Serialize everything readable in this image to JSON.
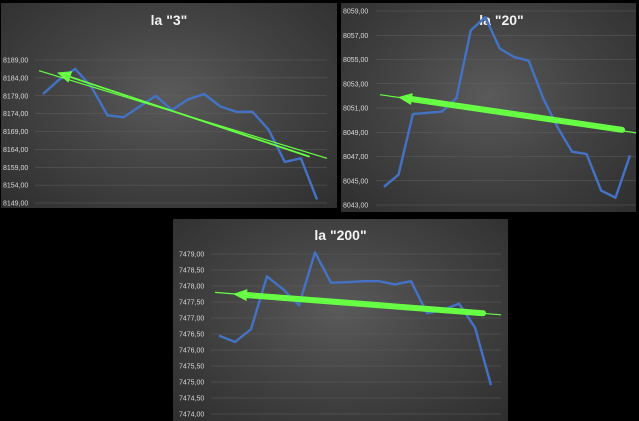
{
  "chart_data": [
    {
      "type": "line",
      "title": "la \"3\"",
      "ylim": [
        8149,
        8189
      ],
      "yticks": [
        "8149,00",
        "8154,00",
        "8159,00",
        "8164,00",
        "8169,00",
        "8174,00",
        "8179,00",
        "8184,00",
        "8189,00"
      ],
      "series": [
        {
          "values": [
            8179.5,
            8183.5,
            8186.5,
            8181.5,
            8173.5,
            8173.0,
            8176.0,
            8179.0,
            8175.0,
            8178.0,
            8179.5,
            8176.0,
            8174.5,
            8174.5,
            8169.5,
            8160.5,
            8161.5,
            8150.0
          ],
          "color": "#4472c4"
        }
      ],
      "trendline": {
        "start": 8185.5,
        "end": 8162.0,
        "extend_start": 8186.0,
        "extend_end": 8161.5,
        "color": "#66ff44"
      },
      "grid": true
    },
    {
      "type": "line",
      "title": "la \"20\"",
      "ylim": [
        8043,
        8059
      ],
      "yticks": [
        "8043,00",
        "8045,00",
        "8047,00",
        "8049,00",
        "8051,00",
        "8053,00",
        "8055,00",
        "8057,00",
        "8059,00"
      ],
      "series": [
        {
          "values": [
            8044.5,
            8045.5,
            8050.5,
            8050.6,
            8050.7,
            8051.8,
            8057.4,
            8058.5,
            8055.9,
            8055.2,
            8054.9,
            8051.8,
            8049.4,
            8047.4,
            8047.2,
            8044.2,
            8043.6,
            8047.1
          ],
          "color": "#4472c4"
        }
      ],
      "trendline": {
        "start": 8051.9,
        "end": 8049.2,
        "extend_start": 8052.1,
        "extend_end": 8048.9,
        "color": "#66ff44"
      },
      "grid": true
    },
    {
      "type": "line",
      "title": "la \"200\"",
      "ylim": [
        7474,
        7479
      ],
      "yticks": [
        "7474,00",
        "7474,50",
        "7475,00",
        "7475,50",
        "7476,00",
        "7476,50",
        "7477,00",
        "7477,50",
        "7478,00",
        "7478,50",
        "7479,00"
      ],
      "series": [
        {
          "values": [
            7476.45,
            7476.25,
            7476.65,
            7478.3,
            7477.9,
            7477.4,
            7479.05,
            7478.1,
            7478.12,
            7478.15,
            7478.15,
            7478.05,
            7478.15,
            7477.15,
            7477.25,
            7477.45,
            7476.7,
            7474.9
          ],
          "color": "#4472c4"
        }
      ],
      "trendline": {
        "start": 7477.75,
        "end": 7477.15,
        "extend_start": 7477.8,
        "extend_end": 7477.1,
        "color": "#66ff44"
      },
      "grid": true
    }
  ]
}
